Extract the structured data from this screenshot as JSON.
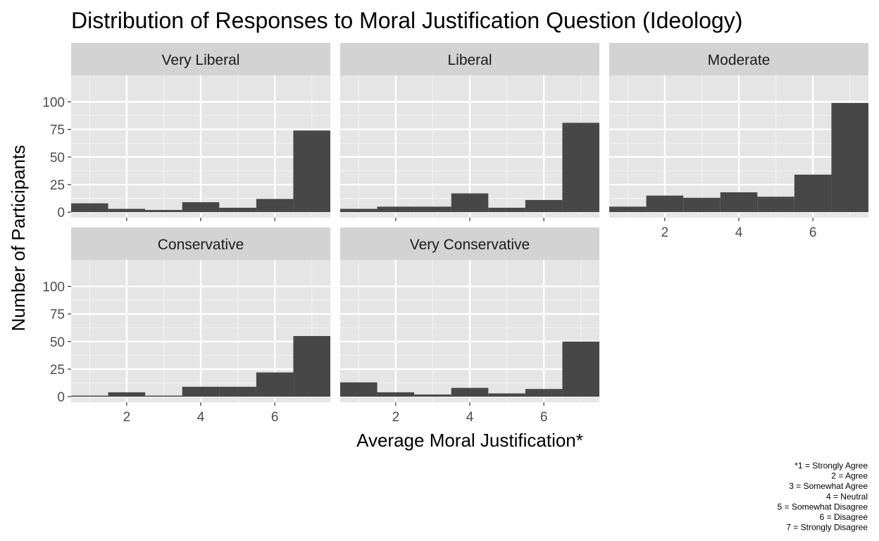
{
  "chart_data": {
    "type": "bar",
    "title": "Distribution of Responses to Moral Justification Question (Ideology)",
    "xlabel": "Average Moral Justification*",
    "ylabel": "Number of Participants",
    "xlim": [
      0.5,
      7.5
    ],
    "ylim": [
      0,
      100
    ],
    "x_ticks": [
      2,
      4,
      6
    ],
    "y_ticks": [
      0,
      25,
      50,
      75,
      100
    ],
    "bin_width": 1,
    "bin_centers": [
      1,
      2,
      3,
      4,
      5,
      6,
      7
    ],
    "bar_color": "#474747",
    "panel_background": "#e5e5e5",
    "strip_background": "#d3d3d3",
    "grid": true,
    "panels": [
      {
        "name": "Very Liberal",
        "values": [
          8,
          3,
          2,
          9,
          4,
          12,
          74
        ]
      },
      {
        "name": "Liberal",
        "values": [
          3,
          5,
          5,
          17,
          4,
          11,
          81
        ]
      },
      {
        "name": "Moderate",
        "values": [
          5,
          15,
          13,
          18,
          14,
          34,
          99
        ]
      },
      {
        "name": "Conservative",
        "values": [
          1,
          4,
          1,
          9,
          9,
          22,
          55
        ]
      },
      {
        "name": "Very Conservative",
        "values": [
          13,
          4,
          2,
          8,
          3,
          7,
          50
        ]
      }
    ],
    "caption_lines": [
      "*1 = Strongly Agree ",
      "2 = Agree",
      "3 = Somewhat Agree",
      "4 = Neutral",
      "5 = Somewhat Disagree",
      "6 = Disagree",
      "7 = Strongly Disagree"
    ]
  }
}
